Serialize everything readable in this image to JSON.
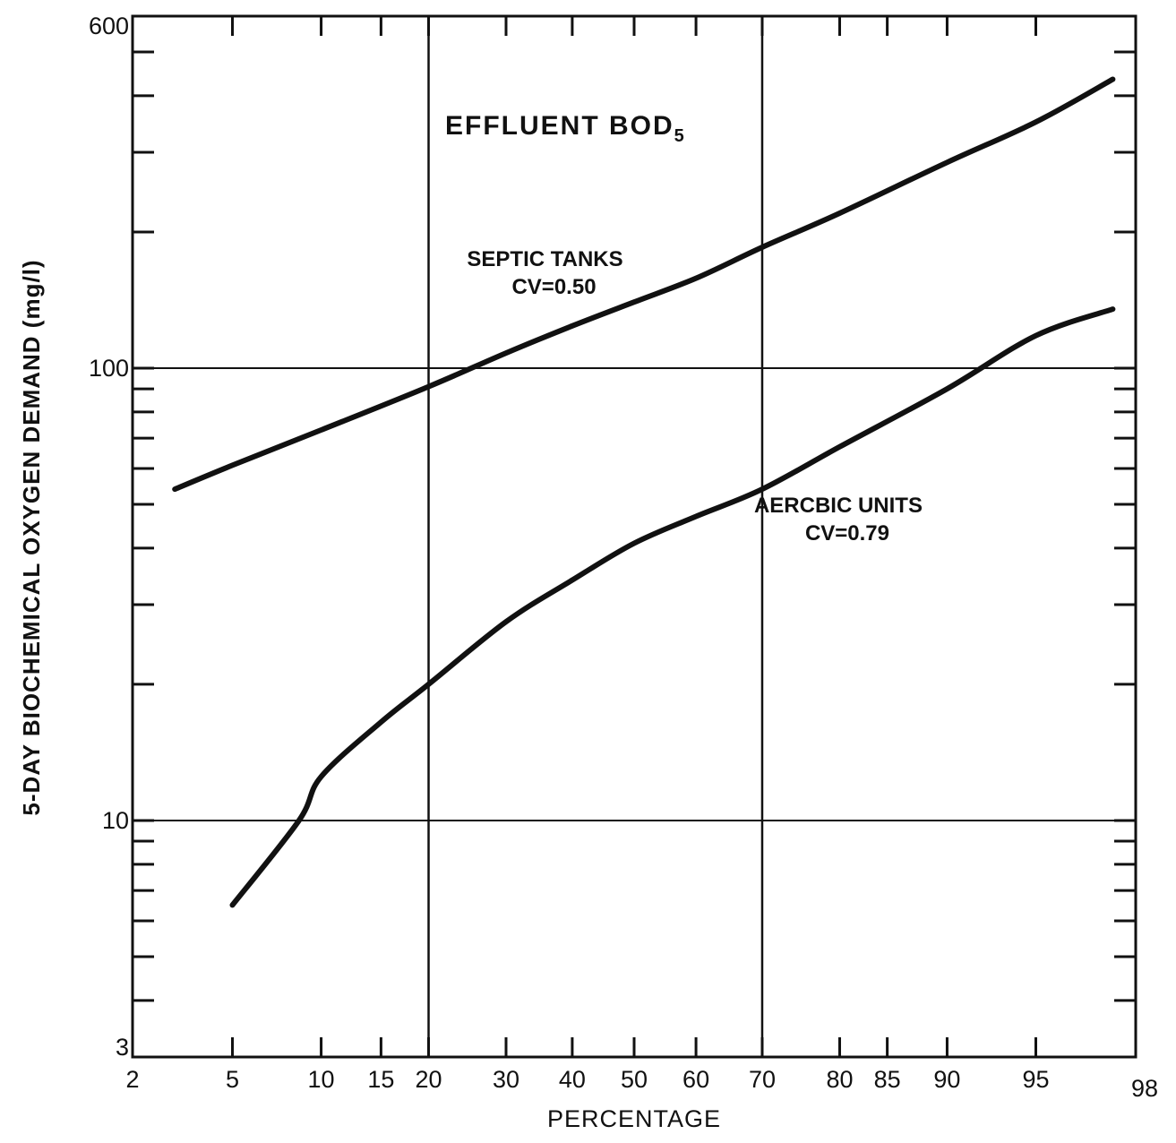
{
  "chart_data": {
    "type": "line",
    "title": "EFFLUENT BOD",
    "title_subscript": "5",
    "xlabel": "PERCENTAGE",
    "ylabel": "5-DAY BIOCHEMICAL OXYGEN DEMAND (mg/l)",
    "x_scale": "normal-probability",
    "y_scale": "log",
    "xlim": [
      2,
      98
    ],
    "ylim": [
      3,
      600
    ],
    "x_tick_labels": [
      "2",
      "5",
      "10",
      "15",
      "20",
      "30",
      "40",
      "50",
      "60",
      "70",
      "80",
      "85",
      "90",
      "95",
      "98"
    ],
    "y_tick_labels": [
      "3",
      "10",
      "100",
      "600"
    ],
    "grid": {
      "x_lines": [
        20,
        70
      ],
      "y_lines": [
        10,
        100
      ]
    },
    "series": [
      {
        "name": "SEPTIC TANKS",
        "annotation": "CV=0.50",
        "points": [
          [
            3,
            54
          ],
          [
            5,
            61
          ],
          [
            10,
            73
          ],
          [
            20,
            91
          ],
          [
            30,
            108
          ],
          [
            40,
            124
          ],
          [
            50,
            140
          ],
          [
            60,
            158
          ],
          [
            70,
            185
          ],
          [
            80,
            220
          ],
          [
            90,
            285
          ],
          [
            95,
            350
          ],
          [
            97.5,
            435
          ]
        ],
        "label_pos": [
          20,
          168
        ]
      },
      {
        "name": "AERCBIC UNITS",
        "annotation": "CV=0.79",
        "points": [
          [
            5,
            6.5
          ],
          [
            8.5,
            10
          ],
          [
            10,
            12.5
          ],
          [
            15,
            16.5
          ],
          [
            20,
            20
          ],
          [
            30,
            27.5
          ],
          [
            40,
            34
          ],
          [
            50,
            41
          ],
          [
            60,
            47
          ],
          [
            70,
            54
          ],
          [
            80,
            67
          ],
          [
            90,
            90
          ],
          [
            95,
            118
          ],
          [
            97.5,
            135
          ]
        ],
        "label_pos": [
          70,
          48
        ]
      }
    ]
  }
}
